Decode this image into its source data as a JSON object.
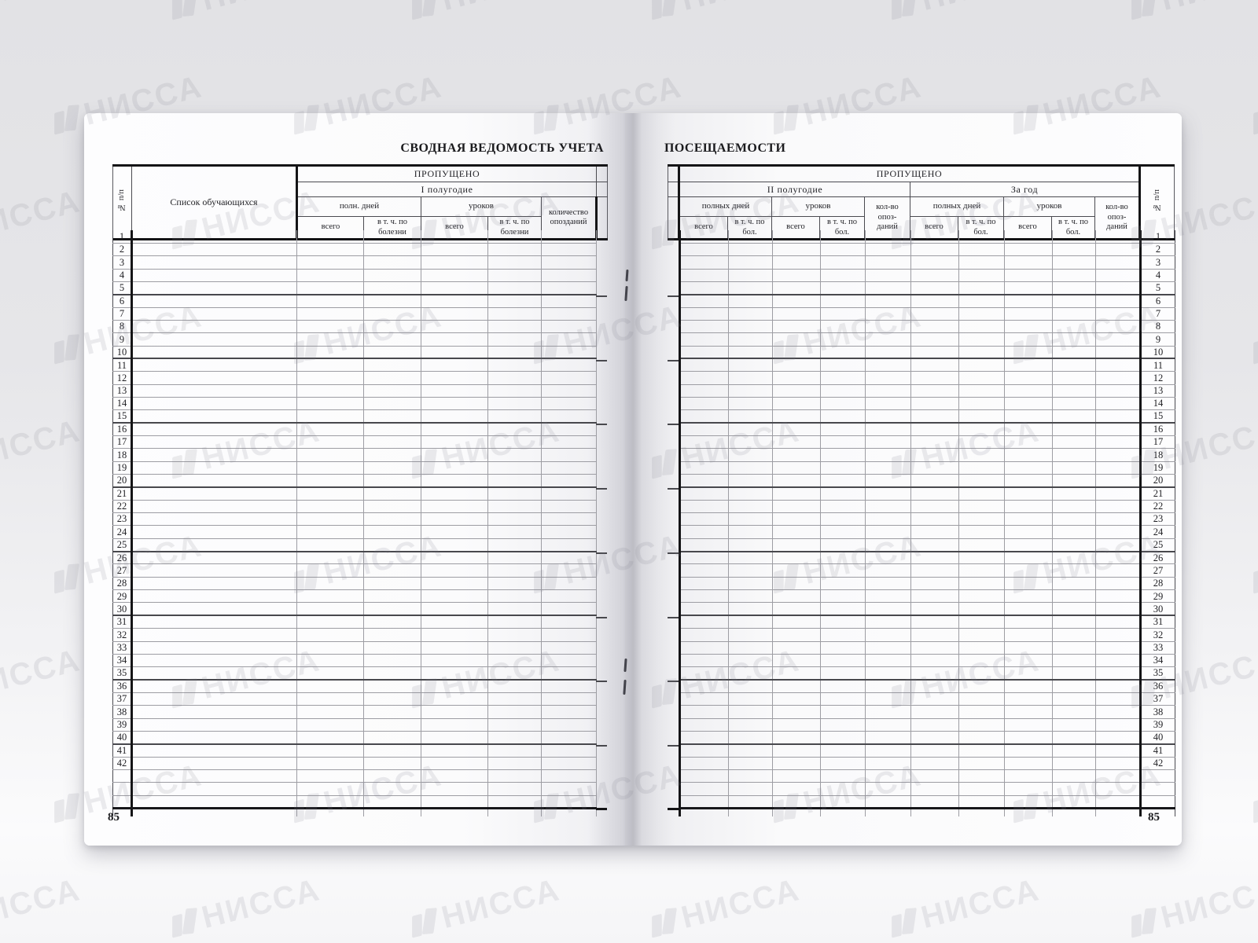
{
  "book": {
    "left_page": {
      "title": "СВОДНАЯ ВЕДОМОСТЬ УЧЕТА",
      "page_number": "85",
      "columns": {
        "row_number": "№ п/п",
        "students": "Список обучающихся",
        "missed": "ПРОПУЩЕНО",
        "period": "I полугодие",
        "full_days": "полн. дней",
        "lessons": "уроков",
        "total": "всего",
        "due_illness": "в т. ч. по болезни",
        "late_count": "количество опозданий"
      },
      "rows": [
        "1",
        "2",
        "3",
        "4",
        "5",
        "6",
        "7",
        "8",
        "9",
        "10",
        "11",
        "12",
        "13",
        "14",
        "15",
        "16",
        "17",
        "18",
        "19",
        "20",
        "21",
        "22",
        "23",
        "24",
        "25",
        "26",
        "27",
        "28",
        "29",
        "30",
        "31",
        "32",
        "33",
        "34",
        "35",
        "36",
        "37",
        "38",
        "39",
        "40",
        "41",
        "42",
        "",
        "",
        ""
      ]
    },
    "right_page": {
      "title": "ПОСЕЩАЕМОСТИ",
      "page_number": "85",
      "columns": {
        "missed": "ПРОПУЩЕНО",
        "period": "II полугодие",
        "year": "За год",
        "full_days": "полных дней",
        "lessons": "уроков",
        "total": "всего",
        "due_illness": "в т. ч. по бол.",
        "late_count": "кол-во опоз- даний",
        "row_number": "№ п/п"
      },
      "rows": [
        "1",
        "2",
        "3",
        "4",
        "5",
        "6",
        "7",
        "8",
        "9",
        "10",
        "11",
        "12",
        "13",
        "14",
        "15",
        "16",
        "17",
        "18",
        "19",
        "20",
        "21",
        "22",
        "23",
        "24",
        "25",
        "26",
        "27",
        "28",
        "29",
        "30",
        "31",
        "32",
        "33",
        "34",
        "35",
        "36",
        "37",
        "38",
        "39",
        "40",
        "41",
        "42",
        "",
        "",
        ""
      ]
    }
  },
  "watermark": {
    "text": "НИССА"
  }
}
